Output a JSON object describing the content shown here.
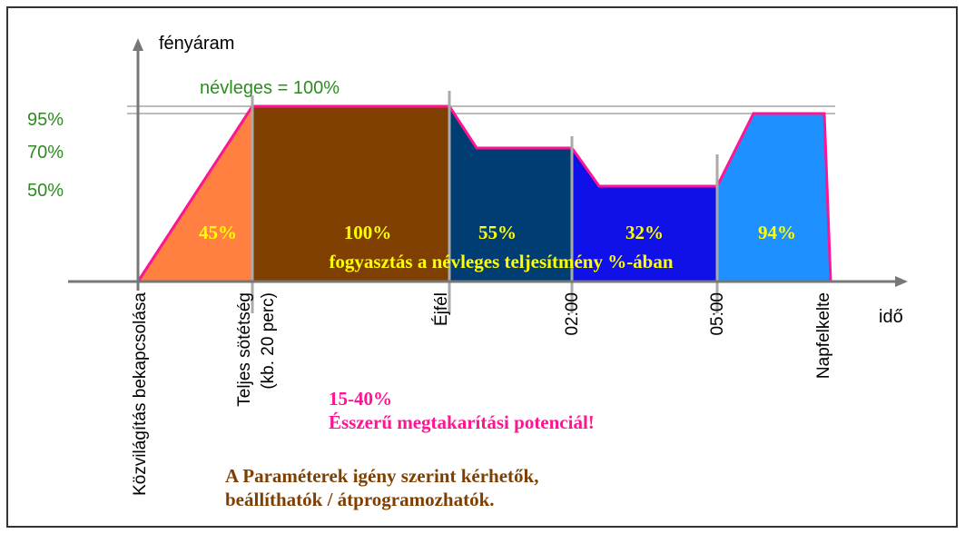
{
  "axis": {
    "y_label": "fényáram",
    "x_label": "idő",
    "nominal": "névleges = 100%",
    "levels": [
      "95%",
      "70%",
      "50%"
    ]
  },
  "segments": [
    "45%",
    "100%",
    "55%",
    "32%",
    "94%"
  ],
  "caption": "fogyasztás a névleges teljesítmény %-ában",
  "times": [
    [
      "Közvilágítás bekapcsolása"
    ],
    [
      "Teljes sötétség",
      "(kb. 20 perc)"
    ],
    [
      "Éjfél"
    ],
    [
      "02:00"
    ],
    [
      "05:00"
    ],
    [
      "Napfelkelte"
    ]
  ],
  "savings": {
    "range": "15-40%",
    "text": "Ésszerű megtakarítási potenciál!"
  },
  "note": [
    "A Paraméterek igény szerint kérhetők,",
    "beállíthatók / átprogramozhatók."
  ]
}
